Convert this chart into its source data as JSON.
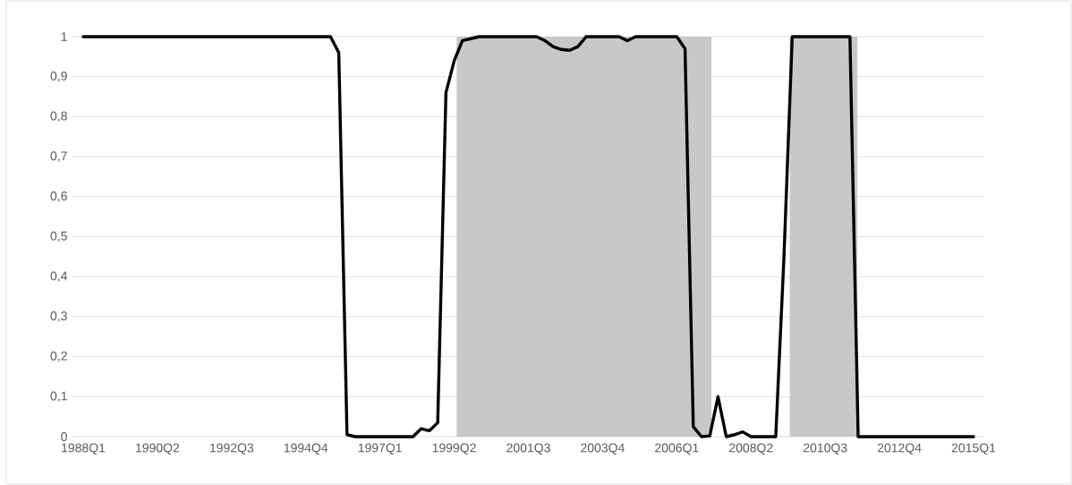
{
  "chart_data": {
    "type": "line",
    "categories": [
      "1988Q1",
      null,
      null,
      null,
      null,
      null,
      null,
      null,
      null,
      "1990Q2",
      null,
      null,
      null,
      null,
      null,
      null,
      null,
      null,
      "1992Q3",
      null,
      null,
      null,
      null,
      null,
      null,
      null,
      null,
      "1994Q4",
      null,
      null,
      null,
      null,
      null,
      null,
      null,
      null,
      "1997Q1",
      null,
      null,
      null,
      null,
      null,
      null,
      null,
      null,
      "1999Q2",
      null,
      null,
      null,
      null,
      null,
      null,
      null,
      null,
      "2001Q3",
      null,
      null,
      null,
      null,
      null,
      null,
      null,
      null,
      "2003Q4",
      null,
      null,
      null,
      null,
      null,
      null,
      null,
      null,
      "2006Q1",
      null,
      null,
      null,
      null,
      null,
      null,
      null,
      null,
      "2008Q2",
      null,
      null,
      null,
      null,
      null,
      null,
      null,
      null,
      "2010Q3",
      null,
      null,
      null,
      null,
      null,
      null,
      null,
      null,
      "2012Q4",
      null,
      null,
      null,
      null,
      null,
      null,
      null,
      null,
      "2015Q1"
    ],
    "series": [
      {
        "color": "#000000",
        "values": [
          1,
          1,
          1,
          1,
          1,
          1,
          1,
          1,
          1,
          1,
          1,
          1,
          1,
          1,
          1,
          1,
          1,
          1,
          1,
          1,
          1,
          1,
          1,
          1,
          1,
          1,
          1,
          1,
          1,
          1,
          1,
          0.96,
          0.005,
          0,
          0,
          0,
          0,
          0,
          0,
          0,
          0,
          0.02,
          0.015,
          0.035,
          0.86,
          0.94,
          0.99,
          0.995,
          1,
          1,
          1,
          1,
          1,
          1,
          1,
          1,
          0.99,
          0.975,
          0.968,
          0.966,
          0.975,
          1,
          1,
          1,
          1,
          1,
          0.99,
          1,
          1,
          1,
          1,
          1,
          1,
          0.97,
          0.025,
          0,
          0.002,
          0.1,
          0,
          0.005,
          0.012,
          0,
          0,
          0,
          0,
          0.45,
          1,
          1,
          1,
          1,
          1,
          1,
          1,
          1,
          0,
          0,
          0,
          0,
          0,
          0,
          0,
          0,
          0,
          0,
          0,
          0,
          0,
          0,
          0
        ]
      }
    ],
    "ylim": [
      0,
      1
    ],
    "yticks": [
      0,
      {
        "value": 0.1,
        "label": "0,1"
      },
      {
        "value": 0.2,
        "label": "0,2"
      },
      {
        "value": 0.3,
        "label": "0,3"
      },
      {
        "value": 0.4,
        "label": "0,4"
      },
      {
        "value": 0.5,
        "label": "0,5"
      },
      {
        "value": 0.6,
        "label": "0,6"
      },
      {
        "value": 0.7,
        "label": "0,7"
      },
      {
        "value": 0.8,
        "label": "0,8"
      },
      {
        "value": 0.9,
        "label": "0,9"
      },
      1
    ],
    "grid": "y",
    "marker": "none",
    "line_style": "solid"
  }
}
